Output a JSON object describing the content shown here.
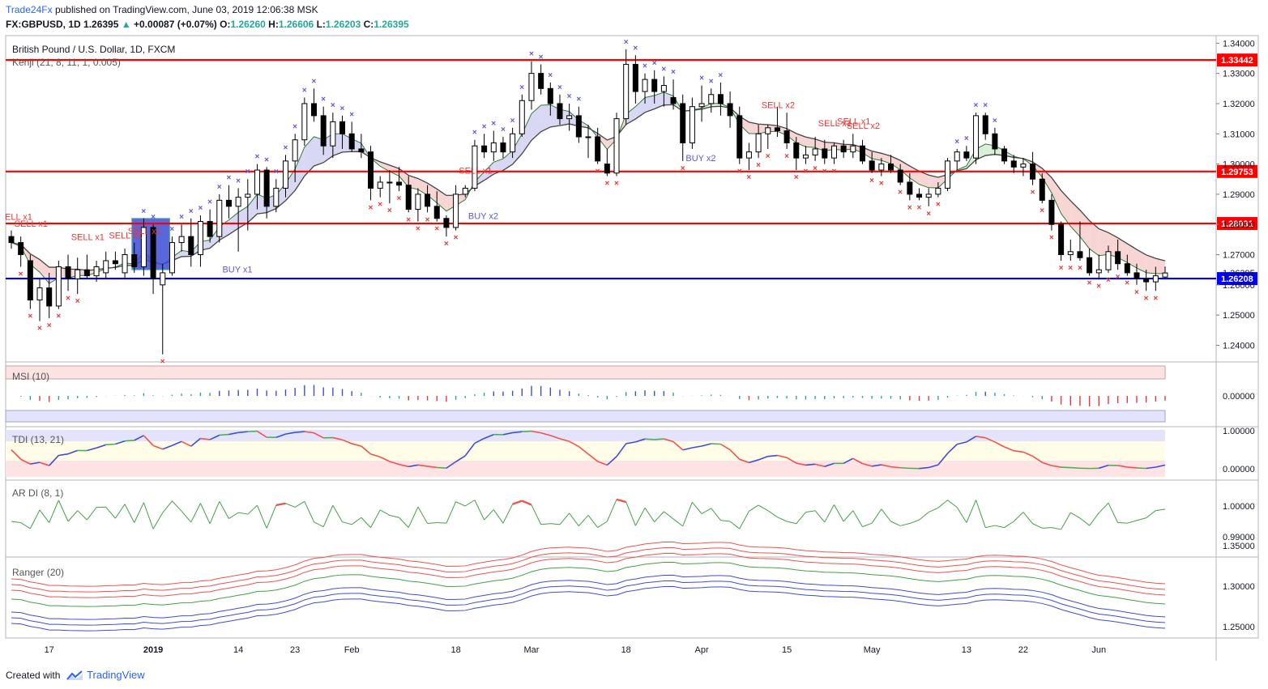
{
  "header": {
    "author": "Trade24Fx",
    "published": "published on TradingView.com, June 03, 2019 12:06:38 MSK",
    "symbol": "FX:GBPUSD, 1D",
    "last": "1.26395",
    "change_arrow": "▲",
    "change": "+0.00087 (+0.07%)",
    "o_label": "O:",
    "o": "1.26260",
    "h_label": "H:",
    "h": "1.26606",
    "l_label": "L:",
    "l": "1.26203",
    "c_label": "C:",
    "c": "1.26395"
  },
  "footer": {
    "created_with": "Created with",
    "brand": "TradingView",
    "logo": "tradingview-logo-icon"
  },
  "colors": {
    "bull": "#26a69a",
    "bear": "#ef5350",
    "level_red": "#ff0000",
    "level_blue": "#0000ff",
    "cloud_bear": "#f7d5d5",
    "cloud_bull": "#d7f0d7",
    "cloud_blue": "#d8d8f5",
    "marker_blue": "#5b5bd6",
    "marker_red": "#e53935"
  },
  "chart_data": {
    "type": "candlestick",
    "title": "British Pound / U.S. Dollar, 1D, FXCM",
    "indicator": "Kenji (21, 8, 11, 1, 0.005)",
    "y_ticks": [
      "1.34000",
      "1.33000",
      "1.32000",
      "1.31000",
      "1.30000",
      "1.29000",
      "1.28000",
      "1.27000",
      "1.26000",
      "1.25000",
      "1.24000"
    ],
    "y_range": [
      1.2345,
      1.3425
    ],
    "levels": [
      {
        "label": "1.33442",
        "value": 1.33442,
        "color": "red"
      },
      {
        "label": "1.29753",
        "value": 1.29753,
        "color": "red"
      },
      {
        "label": "1.28031",
        "value": 1.28031,
        "color": "red"
      },
      {
        "label": "1.26208",
        "value": 1.26208,
        "color": "blue"
      }
    ],
    "last_price_label": "1.26395",
    "last_price": 1.26395,
    "x_ticks": [
      "17",
      "2019",
      "14",
      "23",
      "Feb",
      "18",
      "Mar",
      "18",
      "Apr",
      "15",
      "May",
      "13",
      "22",
      "Jun"
    ],
    "x_tick_bars": [
      4,
      15,
      24,
      30,
      36,
      47,
      55,
      65,
      73,
      82,
      91,
      101,
      107,
      115
    ],
    "candles": [
      [
        1.276,
        1.278,
        1.272,
        1.274
      ],
      [
        1.274,
        1.276,
        1.266,
        1.27
      ],
      [
        1.268,
        1.27,
        1.252,
        1.255
      ],
      [
        1.255,
        1.262,
        1.248,
        1.259
      ],
      [
        1.259,
        1.264,
        1.249,
        1.253
      ],
      [
        1.253,
        1.268,
        1.252,
        1.266
      ],
      [
        1.266,
        1.27,
        1.258,
        1.262
      ],
      [
        1.262,
        1.269,
        1.257,
        1.265
      ],
      [
        1.265,
        1.27,
        1.262,
        1.263
      ],
      [
        1.263,
        1.268,
        1.261,
        1.266
      ],
      [
        1.264,
        1.271,
        1.262,
        1.268
      ],
      [
        1.268,
        1.271,
        1.265,
        1.267
      ],
      [
        1.264,
        1.272,
        1.262,
        1.27
      ],
      [
        1.27,
        1.274,
        1.264,
        1.266
      ],
      [
        1.266,
        1.282,
        1.263,
        1.279
      ],
      [
        1.279,
        1.28,
        1.257,
        1.262
      ],
      [
        1.26,
        1.267,
        1.237,
        1.264
      ],
      [
        1.264,
        1.276,
        1.263,
        1.274
      ],
      [
        1.274,
        1.28,
        1.271,
        1.276
      ],
      [
        1.276,
        1.282,
        1.266,
        1.27
      ],
      [
        1.27,
        1.283,
        1.266,
        1.281
      ],
      [
        1.281,
        1.285,
        1.274,
        1.276
      ],
      [
        1.276,
        1.29,
        1.274,
        1.288
      ],
      [
        1.288,
        1.293,
        1.282,
        1.286
      ],
      [
        1.286,
        1.292,
        1.271,
        1.289
      ],
      [
        1.289,
        1.295,
        1.278,
        1.29
      ],
      [
        1.29,
        1.3,
        1.285,
        1.298
      ],
      [
        1.298,
        1.299,
        1.282,
        1.286
      ],
      [
        1.286,
        1.295,
        1.284,
        1.292
      ],
      [
        1.292,
        1.303,
        1.289,
        1.301
      ],
      [
        1.301,
        1.31,
        1.294,
        1.308
      ],
      [
        1.308,
        1.322,
        1.306,
        1.32
      ],
      [
        1.32,
        1.325,
        1.314,
        1.316
      ],
      [
        1.316,
        1.319,
        1.303,
        1.306
      ],
      [
        1.306,
        1.317,
        1.302,
        1.314
      ],
      [
        1.314,
        1.316,
        1.305,
        1.31
      ],
      [
        1.31,
        1.314,
        1.304,
        1.305
      ],
      [
        1.305,
        1.31,
        1.302,
        1.304
      ],
      [
        1.304,
        1.306,
        1.288,
        1.292
      ],
      [
        1.292,
        1.296,
        1.289,
        1.294
      ],
      [
        1.294,
        1.298,
        1.287,
        1.294
      ],
      [
        1.294,
        1.299,
        1.291,
        1.293
      ],
      [
        1.293,
        1.296,
        1.284,
        1.285
      ],
      [
        1.285,
        1.292,
        1.281,
        1.29
      ],
      [
        1.29,
        1.293,
        1.284,
        1.286
      ],
      [
        1.286,
        1.291,
        1.281,
        1.282
      ],
      [
        1.282,
        1.283,
        1.276,
        1.279
      ],
      [
        1.279,
        1.293,
        1.278,
        1.29
      ],
      [
        1.29,
        1.293,
        1.289,
        1.292
      ],
      [
        1.292,
        1.308,
        1.291,
        1.306
      ],
      [
        1.306,
        1.31,
        1.302,
        1.304
      ],
      [
        1.304,
        1.311,
        1.301,
        1.307
      ],
      [
        1.307,
        1.309,
        1.302,
        1.304
      ],
      [
        1.304,
        1.312,
        1.302,
        1.31
      ],
      [
        1.31,
        1.323,
        1.309,
        1.321
      ],
      [
        1.321,
        1.334,
        1.318,
        1.33
      ],
      [
        1.33,
        1.333,
        1.323,
        1.325
      ],
      [
        1.325,
        1.327,
        1.316,
        1.32
      ],
      [
        1.32,
        1.323,
        1.313,
        1.315
      ],
      [
        1.315,
        1.32,
        1.311,
        1.316
      ],
      [
        1.316,
        1.319,
        1.307,
        1.309
      ],
      [
        1.309,
        1.313,
        1.302,
        1.309
      ],
      [
        1.309,
        1.312,
        1.3,
        1.301
      ],
      [
        1.3,
        1.305,
        1.296,
        1.297
      ],
      [
        1.297,
        1.317,
        1.296,
        1.315
      ],
      [
        1.315,
        1.338,
        1.313,
        1.333
      ],
      [
        1.333,
        1.336,
        1.32,
        1.324
      ],
      [
        1.324,
        1.33,
        1.32,
        1.328
      ],
      [
        1.328,
        1.331,
        1.32,
        1.324
      ],
      [
        1.324,
        1.329,
        1.319,
        1.326
      ],
      [
        1.322,
        1.328,
        1.318,
        1.32
      ],
      [
        1.32,
        1.323,
        1.301,
        1.307
      ],
      [
        1.307,
        1.322,
        1.305,
        1.319
      ],
      [
        1.319,
        1.326,
        1.314,
        1.32
      ],
      [
        1.32,
        1.325,
        1.317,
        1.323
      ],
      [
        1.323,
        1.327,
        1.316,
        1.32
      ],
      [
        1.32,
        1.324,
        1.312,
        1.316
      ],
      [
        1.316,
        1.319,
        1.3,
        1.302
      ],
      [
        1.302,
        1.307,
        1.298,
        1.304
      ],
      [
        1.304,
        1.313,
        1.302,
        1.31
      ],
      [
        1.31,
        1.313,
        1.305,
        1.312
      ],
      [
        1.312,
        1.319,
        1.309,
        1.311
      ],
      [
        1.311,
        1.317,
        1.305,
        1.307
      ],
      [
        1.307,
        1.309,
        1.298,
        1.302
      ],
      [
        1.302,
        1.306,
        1.3,
        1.303
      ],
      [
        1.303,
        1.309,
        1.301,
        1.305
      ],
      [
        1.305,
        1.308,
        1.3,
        1.302
      ],
      [
        1.302,
        1.307,
        1.3,
        1.306
      ],
      [
        1.306,
        1.308,
        1.302,
        1.304
      ],
      [
        1.304,
        1.31,
        1.302,
        1.306
      ],
      [
        1.306,
        1.308,
        1.3,
        1.301
      ],
      [
        1.301,
        1.304,
        1.297,
        1.298
      ],
      [
        1.298,
        1.302,
        1.296,
        1.3
      ],
      [
        1.3,
        1.303,
        1.297,
        1.298
      ],
      [
        1.298,
        1.3,
        1.293,
        1.294
      ],
      [
        1.294,
        1.297,
        1.288,
        1.29
      ],
      [
        1.29,
        1.292,
        1.288,
        1.289
      ],
      [
        1.289,
        1.292,
        1.286,
        1.29
      ],
      [
        1.29,
        1.294,
        1.289,
        1.292
      ],
      [
        1.292,
        1.302,
        1.291,
        1.301
      ],
      [
        1.301,
        1.305,
        1.298,
        1.304
      ],
      [
        1.304,
        1.306,
        1.301,
        1.302
      ],
      [
        1.302,
        1.317,
        1.3,
        1.316
      ],
      [
        1.316,
        1.317,
        1.308,
        1.31
      ],
      [
        1.31,
        1.312,
        1.303,
        1.305
      ],
      [
        1.305,
        1.306,
        1.3,
        1.301
      ],
      [
        1.301,
        1.303,
        1.297,
        1.299
      ],
      [
        1.299,
        1.302,
        1.296,
        1.3
      ],
      [
        1.3,
        1.304,
        1.293,
        1.295
      ],
      [
        1.295,
        1.297,
        1.287,
        1.288
      ],
      [
        1.288,
        1.29,
        1.278,
        1.28
      ],
      [
        1.28,
        1.281,
        1.268,
        1.27
      ],
      [
        1.27,
        1.275,
        1.268,
        1.271
      ],
      [
        1.271,
        1.281,
        1.268,
        1.269
      ],
      [
        1.269,
        1.272,
        1.263,
        1.264
      ],
      [
        1.264,
        1.27,
        1.262,
        1.265
      ],
      [
        1.265,
        1.273,
        1.264,
        1.271
      ],
      [
        1.271,
        1.275,
        1.265,
        1.267
      ],
      [
        1.267,
        1.27,
        1.263,
        1.264
      ],
      [
        1.264,
        1.267,
        1.26,
        1.262
      ],
      [
        1.262,
        1.265,
        1.258,
        1.261
      ],
      [
        1.261,
        1.266,
        1.258,
        1.263
      ],
      [
        1.2626,
        1.2661,
        1.262,
        1.26395
      ]
    ],
    "signal_labels": [
      {
        "text": "ELL x1",
        "bar": 0,
        "price": 1.2815
      },
      {
        "text": "SELL x1",
        "bar": 1,
        "price": 1.2793
      },
      {
        "text": "SELL x1",
        "bar": 7,
        "price": 1.2748
      },
      {
        "text": "SELL x1",
        "bar": 11,
        "price": 1.2754
      },
      {
        "text": "SELL x1",
        "bar": 13,
        "price": 1.2768
      },
      {
        "text": "BUY x1",
        "bar": 23,
        "price": 1.2641
      },
      {
        "text": "SELL x1",
        "bar": 48,
        "price": 1.2968
      },
      {
        "text": "BUY x2",
        "bar": 49,
        "price": 1.2818
      },
      {
        "text": "BUY x2",
        "bar": 72,
        "price": 1.301
      },
      {
        "text": "SELL x2",
        "bar": 80,
        "price": 1.3185
      },
      {
        "text": "SELL x1",
        "bar": 86,
        "price": 1.3125
      },
      {
        "text": "SELL x1",
        "bar": 88,
        "price": 1.3132
      },
      {
        "text": "SELL x2",
        "bar": 89,
        "price": 1.3117
      }
    ]
  },
  "panels": {
    "msi": {
      "label": "MSI (10)",
      "ticks": [
        "0.00000"
      ]
    },
    "tdi": {
      "label": "TDI (13, 21)",
      "ticks": [
        "1.00000",
        "0.00000"
      ]
    },
    "ardi": {
      "label": "AR DI (8, 1)",
      "ticks": [
        "1.00000",
        "0.99000"
      ]
    },
    "ranger": {
      "label": "Ranger (20)",
      "ticks": [
        "1.35000",
        "1.30000",
        "1.25000"
      ]
    }
  }
}
